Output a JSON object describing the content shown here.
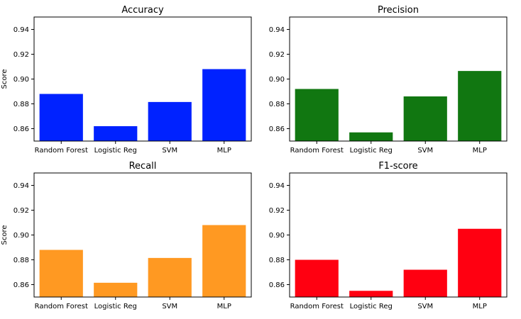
{
  "chart_data": [
    {
      "type": "bar",
      "title": "Accuracy",
      "ylabel": "Score",
      "categories": [
        "Random Forest",
        "Logistic Reg",
        "SVM",
        "MLP"
      ],
      "values": [
        0.888,
        0.862,
        0.8815,
        0.908
      ],
      "ylim": [
        0.85,
        0.95
      ],
      "yticks": [
        "0.86",
        "0.88",
        "0.90",
        "0.92",
        "0.94"
      ],
      "color": "#0022ff",
      "grid": false
    },
    {
      "type": "bar",
      "title": "Precision",
      "ylabel": "",
      "categories": [
        "Random Forest",
        "Logistic Reg",
        "SVM",
        "MLP"
      ],
      "values": [
        0.892,
        0.857,
        0.886,
        0.9065
      ],
      "ylim": [
        0.85,
        0.95
      ],
      "yticks": [
        "0.86",
        "0.88",
        "0.90",
        "0.92",
        "0.94"
      ],
      "color": "#117711",
      "grid": false
    },
    {
      "type": "bar",
      "title": "Recall",
      "ylabel": "Score",
      "categories": [
        "Random Forest",
        "Logistic Reg",
        "SVM",
        "MLP"
      ],
      "values": [
        0.888,
        0.8615,
        0.8815,
        0.908
      ],
      "ylim": [
        0.85,
        0.95
      ],
      "yticks": [
        "0.86",
        "0.88",
        "0.90",
        "0.92",
        "0.94"
      ],
      "color": "#ff9922",
      "grid": false
    },
    {
      "type": "bar",
      "title": "F1-score",
      "ylabel": "",
      "categories": [
        "Random Forest",
        "Logistic Reg",
        "SVM",
        "MLP"
      ],
      "values": [
        0.88,
        0.855,
        0.872,
        0.905
      ],
      "ylim": [
        0.85,
        0.95
      ],
      "yticks": [
        "0.86",
        "0.88",
        "0.90",
        "0.92",
        "0.94"
      ],
      "color": "#ff0011",
      "grid": false
    }
  ]
}
